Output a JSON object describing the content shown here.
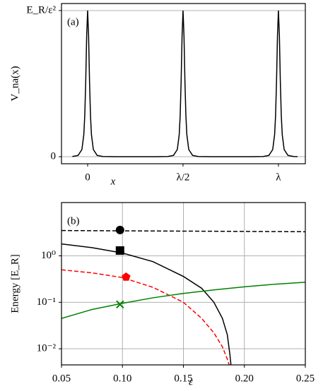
{
  "chart_data": [
    {
      "type": "line",
      "annotation": "(a)",
      "xlabel": "x",
      "ylabel": "V_na(x)",
      "xlim": [
        -0.137,
        1.141
      ],
      "ylim": [
        -0.048,
        1.048
      ],
      "xticks": [
        0,
        {
          "value": 0.5,
          "label": "λ/2"
        },
        {
          "value": 1,
          "label": "λ"
        }
      ],
      "yticks": [
        0,
        {
          "value": 1,
          "label": "E_R/ε²"
        }
      ],
      "grid": "y",
      "series": [
        {
          "color": "#000000",
          "linestyle": "solid",
          "x": [
            -0.08,
            -0.05,
            -0.03,
            -0.02,
            -0.015,
            -0.01,
            -0.005,
            0,
            0.005,
            0.01,
            0.015,
            0.02,
            0.03,
            0.05,
            0.08,
            0.15,
            0.25,
            0.35,
            0.42,
            0.45,
            0.47,
            0.48,
            0.485,
            0.49,
            0.495,
            0.5,
            0.505,
            0.51,
            0.515,
            0.52,
            0.53,
            0.55,
            0.58,
            0.65,
            0.75,
            0.85,
            0.92,
            0.95,
            0.97,
            0.98,
            0.985,
            0.99,
            0.995,
            1,
            1.005,
            1.01,
            1.015,
            1.02,
            1.03,
            1.05,
            1.08,
            1.1
          ],
          "values": [
            0.0017,
            0.009,
            0.049,
            0.151,
            0.281,
            0.514,
            0.828,
            1,
            0.828,
            0.514,
            0.281,
            0.151,
            0.049,
            0.009,
            0.0017,
            0.0002,
            0.0001,
            0.0002,
            0.0017,
            0.009,
            0.049,
            0.151,
            0.281,
            0.514,
            0.828,
            1,
            0.828,
            0.514,
            0.281,
            0.151,
            0.049,
            0.009,
            0.0017,
            0.0002,
            0.0001,
            0.0002,
            0.0017,
            0.009,
            0.049,
            0.151,
            0.281,
            0.514,
            0.828,
            1,
            0.828,
            0.514,
            0.281,
            0.151,
            0.049,
            0.009,
            0.0017,
            0.0008
          ]
        }
      ]
    },
    {
      "type": "line",
      "annotation": "(b)",
      "xlabel": "ε",
      "ylabel": "Energy [E_R]",
      "yscale": "log",
      "xlim": [
        0.05,
        0.25
      ],
      "ylim": [
        0.0045,
        14
      ],
      "xticks": [
        0.05,
        {
          "value": 0.1,
          "label": "0.10"
        },
        0.15,
        {
          "value": 0.2,
          "label": "0.20"
        },
        0.25
      ],
      "yticks": [
        {
          "value": 0.01,
          "label": "10⁻²"
        },
        {
          "value": 0.1,
          "label": "10⁻¹"
        },
        {
          "value": 1,
          "label": "10⁰"
        }
      ],
      "grid": "both",
      "series": [
        {
          "color": "#000000",
          "linestyle": "dashed",
          "x": [
            0.05,
            0.1,
            0.15,
            0.2,
            0.25
          ],
          "values": [
            3.5,
            3.45,
            3.4,
            3.35,
            3.3
          ]
        },
        {
          "color": "#000000",
          "linestyle": "solid",
          "x": [
            0.05,
            0.075,
            0.1,
            0.125,
            0.15,
            0.165,
            0.175,
            0.182,
            0.186,
            0.188,
            0.189
          ],
          "values": [
            1.8,
            1.5,
            1.15,
            0.75,
            0.36,
            0.2,
            0.1,
            0.045,
            0.02,
            0.008,
            0.0045
          ]
        },
        {
          "color": "#ff0000",
          "linestyle": "dashed",
          "x": [
            0.05,
            0.075,
            0.1,
            0.125,
            0.15,
            0.165,
            0.175,
            0.182,
            0.186,
            0.1875
          ],
          "values": [
            0.5,
            0.43,
            0.34,
            0.21,
            0.1,
            0.045,
            0.022,
            0.011,
            0.006,
            0.0045
          ]
        },
        {
          "color": "#008000",
          "linestyle": "solid",
          "x": [
            0.05,
            0.075,
            0.1,
            0.125,
            0.15,
            0.175,
            0.2,
            0.225,
            0.25
          ],
          "values": [
            0.045,
            0.07,
            0.095,
            0.125,
            0.155,
            0.185,
            0.215,
            0.245,
            0.27
          ]
        },
        {
          "color": "#000000",
          "marker": "circle",
          "x": [
            0.098
          ],
          "values": [
            3.6
          ]
        },
        {
          "color": "#000000",
          "marker": "square",
          "x": [
            0.098
          ],
          "values": [
            1.3
          ]
        },
        {
          "color": "#ff0000",
          "marker": "pentagon",
          "x": [
            0.103
          ],
          "values": [
            0.35
          ]
        },
        {
          "color": "#008000",
          "marker": "cross",
          "x": [
            0.098
          ],
          "values": [
            0.09
          ]
        }
      ]
    }
  ]
}
